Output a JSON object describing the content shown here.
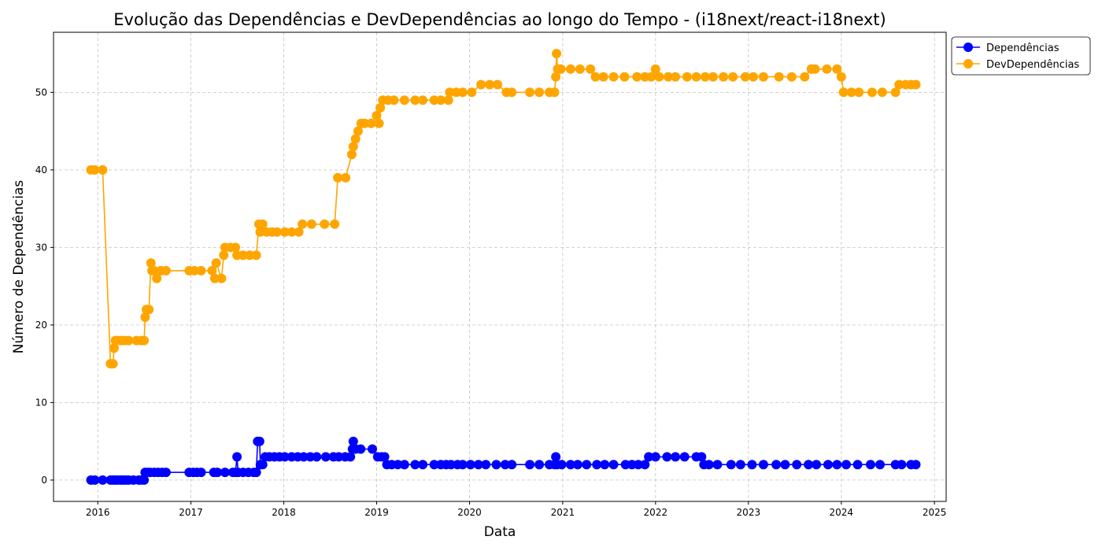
{
  "chart_data": {
    "type": "line",
    "title": "Evolução das Dependências e DevDependências ao longo do Tempo - (i18next/react-i18next)",
    "xlabel": "Data",
    "ylabel": "Número de Dependências",
    "x_ticks": [
      "2016",
      "2017",
      "2018",
      "2019",
      "2020",
      "2021",
      "2022",
      "2023",
      "2024",
      "2025"
    ],
    "y_ticks": [
      0,
      10,
      20,
      30,
      40,
      50
    ],
    "xlim": [
      "2015-07-11",
      "2025-02-16"
    ],
    "ylim": [
      -2.75,
      57.75
    ],
    "grid": true,
    "legend_position": "outside-top-right",
    "marker": "circle",
    "series": [
      {
        "name": "Dependências",
        "color": "#0000ff",
        "points": [
          [
            "2015-12-05",
            0
          ],
          [
            "2015-12-20",
            0
          ],
          [
            "2016-01-20",
            0
          ],
          [
            "2016-02-20",
            0
          ],
          [
            "2016-03-01",
            0
          ],
          [
            "2016-03-10",
            0
          ],
          [
            "2016-03-20",
            0
          ],
          [
            "2016-04-01",
            0
          ],
          [
            "2016-04-10",
            0
          ],
          [
            "2016-04-20",
            0
          ],
          [
            "2016-05-01",
            0
          ],
          [
            "2016-05-20",
            0
          ],
          [
            "2016-06-10",
            0
          ],
          [
            "2016-06-20",
            0
          ],
          [
            "2016-07-01",
            0
          ],
          [
            "2016-07-05",
            1
          ],
          [
            "2016-07-15",
            1
          ],
          [
            "2016-07-25",
            1
          ],
          [
            "2016-08-10",
            1
          ],
          [
            "2016-08-25",
            1
          ],
          [
            "2016-09-10",
            1
          ],
          [
            "2016-09-25",
            1
          ],
          [
            "2016-12-25",
            1
          ],
          [
            "2017-01-10",
            1
          ],
          [
            "2017-01-25",
            1
          ],
          [
            "2017-02-10",
            1
          ],
          [
            "2017-04-01",
            1
          ],
          [
            "2017-04-15",
            1
          ],
          [
            "2017-05-15",
            1
          ],
          [
            "2017-06-15",
            1
          ],
          [
            "2017-06-25",
            1
          ],
          [
            "2017-07-01",
            3
          ],
          [
            "2017-07-05",
            1
          ],
          [
            "2017-07-25",
            1
          ],
          [
            "2017-08-15",
            1
          ],
          [
            "2017-09-05",
            1
          ],
          [
            "2017-09-15",
            1
          ],
          [
            "2017-09-20",
            5
          ],
          [
            "2017-09-28",
            5
          ],
          [
            "2017-10-01",
            2
          ],
          [
            "2017-10-10",
            2
          ],
          [
            "2017-10-20",
            3
          ],
          [
            "2017-11-05",
            3
          ],
          [
            "2017-11-25",
            3
          ],
          [
            "2017-12-15",
            3
          ],
          [
            "2018-01-05",
            3
          ],
          [
            "2018-02-01",
            3
          ],
          [
            "2018-02-25",
            3
          ],
          [
            "2018-03-20",
            3
          ],
          [
            "2018-04-15",
            3
          ],
          [
            "2018-05-10",
            3
          ],
          [
            "2018-06-15",
            3
          ],
          [
            "2018-07-15",
            3
          ],
          [
            "2018-08-05",
            3
          ],
          [
            "2018-08-30",
            3
          ],
          [
            "2018-09-20",
            3
          ],
          [
            "2018-09-28",
            4
          ],
          [
            "2018-10-01",
            5
          ],
          [
            "2018-10-10",
            4
          ],
          [
            "2018-10-30",
            4
          ],
          [
            "2018-12-15",
            4
          ],
          [
            "2019-01-05",
            3
          ],
          [
            "2019-01-20",
            3
          ],
          [
            "2019-02-01",
            3
          ],
          [
            "2019-02-10",
            2
          ],
          [
            "2019-03-01",
            2
          ],
          [
            "2019-03-25",
            2
          ],
          [
            "2019-04-20",
            2
          ],
          [
            "2019-06-01",
            2
          ],
          [
            "2019-07-01",
            2
          ],
          [
            "2019-08-15",
            2
          ],
          [
            "2019-09-10",
            2
          ],
          [
            "2019-10-01",
            2
          ],
          [
            "2019-10-20",
            2
          ],
          [
            "2019-11-15",
            2
          ],
          [
            "2019-12-05",
            2
          ],
          [
            "2020-01-05",
            2
          ],
          [
            "2020-02-05",
            2
          ],
          [
            "2020-03-05",
            2
          ],
          [
            "2020-04-15",
            2
          ],
          [
            "2020-05-20",
            2
          ],
          [
            "2020-06-15",
            2
          ],
          [
            "2020-08-25",
            2
          ],
          [
            "2020-10-01",
            2
          ],
          [
            "2020-11-10",
            2
          ],
          [
            "2020-11-30",
            2
          ],
          [
            "2020-12-05",
            3
          ],
          [
            "2020-12-10",
            2
          ],
          [
            "2020-12-28",
            2
          ],
          [
            "2021-02-01",
            2
          ],
          [
            "2021-03-01",
            2
          ],
          [
            "2021-04-05",
            2
          ],
          [
            "2021-05-15",
            2
          ],
          [
            "2021-06-15",
            2
          ],
          [
            "2021-07-20",
            2
          ],
          [
            "2021-09-05",
            2
          ],
          [
            "2021-09-30",
            2
          ],
          [
            "2021-10-25",
            2
          ],
          [
            "2021-11-20",
            2
          ],
          [
            "2021-12-05",
            3
          ],
          [
            "2022-01-01",
            3
          ],
          [
            "2022-02-15",
            3
          ],
          [
            "2022-03-20",
            3
          ],
          [
            "2022-04-25",
            3
          ],
          [
            "2022-06-10",
            3
          ],
          [
            "2022-07-01",
            3
          ],
          [
            "2022-07-10",
            2
          ],
          [
            "2022-07-30",
            2
          ],
          [
            "2022-09-01",
            2
          ],
          [
            "2022-10-25",
            2
          ],
          [
            "2022-12-01",
            2
          ],
          [
            "2023-01-15",
            2
          ],
          [
            "2023-03-01",
            2
          ],
          [
            "2023-04-20",
            2
          ],
          [
            "2023-05-25",
            2
          ],
          [
            "2023-07-10",
            2
          ],
          [
            "2023-08-25",
            2
          ],
          [
            "2023-09-25",
            2
          ],
          [
            "2023-11-10",
            2
          ],
          [
            "2023-12-15",
            2
          ],
          [
            "2024-01-20",
            2
          ],
          [
            "2024-03-05",
            2
          ],
          [
            "2024-04-25",
            2
          ],
          [
            "2024-06-01",
            2
          ],
          [
            "2024-08-01",
            2
          ],
          [
            "2024-08-25",
            2
          ],
          [
            "2024-10-01",
            2
          ],
          [
            "2024-10-20",
            2
          ]
        ]
      },
      {
        "name": "DevDependências",
        "color": "#ffa500",
        "points": [
          [
            "2015-12-05",
            40
          ],
          [
            "2015-12-20",
            40
          ],
          [
            "2016-01-20",
            40
          ],
          [
            "2016-02-20",
            15
          ],
          [
            "2016-03-01",
            15
          ],
          [
            "2016-03-05",
            17
          ],
          [
            "2016-03-10",
            18
          ],
          [
            "2016-03-20",
            18
          ],
          [
            "2016-04-01",
            18
          ],
          [
            "2016-04-15",
            18
          ],
          [
            "2016-05-01",
            18
          ],
          [
            "2016-06-01",
            18
          ],
          [
            "2016-06-20",
            18
          ],
          [
            "2016-07-01",
            18
          ],
          [
            "2016-07-05",
            21
          ],
          [
            "2016-07-10",
            22
          ],
          [
            "2016-07-20",
            22
          ],
          [
            "2016-07-28",
            28
          ],
          [
            "2016-08-01",
            27
          ],
          [
            "2016-08-10",
            27
          ],
          [
            "2016-08-20",
            26
          ],
          [
            "2016-09-05",
            27
          ],
          [
            "2016-09-25",
            27
          ],
          [
            "2016-12-25",
            27
          ],
          [
            "2017-01-15",
            27
          ],
          [
            "2017-02-10",
            27
          ],
          [
            "2017-03-25",
            27
          ],
          [
            "2017-04-05",
            26
          ],
          [
            "2017-04-10",
            28
          ],
          [
            "2017-05-01",
            26
          ],
          [
            "2017-05-10",
            29
          ],
          [
            "2017-05-15",
            30
          ],
          [
            "2017-06-05",
            30
          ],
          [
            "2017-06-25",
            30
          ],
          [
            "2017-07-01",
            29
          ],
          [
            "2017-07-25",
            29
          ],
          [
            "2017-08-20",
            29
          ],
          [
            "2017-09-15",
            29
          ],
          [
            "2017-09-25",
            33
          ],
          [
            "2017-09-30",
            32
          ],
          [
            "2017-10-10",
            33
          ],
          [
            "2017-10-25",
            32
          ],
          [
            "2017-11-15",
            32
          ],
          [
            "2017-12-05",
            32
          ],
          [
            "2018-01-05",
            32
          ],
          [
            "2018-02-01",
            32
          ],
          [
            "2018-03-01",
            32
          ],
          [
            "2018-03-15",
            33
          ],
          [
            "2018-04-20",
            33
          ],
          [
            "2018-06-10",
            33
          ],
          [
            "2018-07-20",
            33
          ],
          [
            "2018-08-01",
            39
          ],
          [
            "2018-09-01",
            39
          ],
          [
            "2018-09-25",
            42
          ],
          [
            "2018-10-01",
            43
          ],
          [
            "2018-10-10",
            44
          ],
          [
            "2018-10-20",
            45
          ],
          [
            "2018-11-01",
            46
          ],
          [
            "2018-11-15",
            46
          ],
          [
            "2018-12-10",
            46
          ],
          [
            "2019-01-01",
            47
          ],
          [
            "2019-01-10",
            46
          ],
          [
            "2019-01-15",
            48
          ],
          [
            "2019-01-25",
            49
          ],
          [
            "2019-02-15",
            49
          ],
          [
            "2019-03-10",
            49
          ],
          [
            "2019-04-20",
            49
          ],
          [
            "2019-06-01",
            49
          ],
          [
            "2019-07-01",
            49
          ],
          [
            "2019-08-15",
            49
          ],
          [
            "2019-09-10",
            49
          ],
          [
            "2019-10-10",
            49
          ],
          [
            "2019-10-15",
            50
          ],
          [
            "2019-11-10",
            50
          ],
          [
            "2019-12-05",
            50
          ],
          [
            "2020-01-10",
            50
          ],
          [
            "2020-02-15",
            51
          ],
          [
            "2020-03-20",
            51
          ],
          [
            "2020-04-20",
            51
          ],
          [
            "2020-05-25",
            50
          ],
          [
            "2020-06-15",
            50
          ],
          [
            "2020-08-25",
            50
          ],
          [
            "2020-10-01",
            50
          ],
          [
            "2020-11-10",
            50
          ],
          [
            "2020-11-30",
            50
          ],
          [
            "2020-12-05",
            52
          ],
          [
            "2020-12-08",
            55
          ],
          [
            "2020-12-12",
            53
          ],
          [
            "2020-12-25",
            53
          ],
          [
            "2021-02-01",
            53
          ],
          [
            "2021-03-10",
            53
          ],
          [
            "2021-04-20",
            53
          ],
          [
            "2021-05-10",
            52
          ],
          [
            "2021-06-10",
            52
          ],
          [
            "2021-07-20",
            52
          ],
          [
            "2021-09-01",
            52
          ],
          [
            "2021-10-20",
            52
          ],
          [
            "2021-11-20",
            52
          ],
          [
            "2021-12-15",
            52
          ],
          [
            "2022-01-01",
            53
          ],
          [
            "2022-01-15",
            52
          ],
          [
            "2022-02-20",
            52
          ],
          [
            "2022-03-20",
            52
          ],
          [
            "2022-05-05",
            52
          ],
          [
            "2022-06-10",
            52
          ],
          [
            "2022-07-15",
            52
          ],
          [
            "2022-08-15",
            52
          ],
          [
            "2022-09-25",
            52
          ],
          [
            "2022-11-01",
            52
          ],
          [
            "2022-12-20",
            52
          ],
          [
            "2023-01-20",
            52
          ],
          [
            "2023-03-01",
            52
          ],
          [
            "2023-05-01",
            52
          ],
          [
            "2023-06-20",
            52
          ],
          [
            "2023-08-10",
            52
          ],
          [
            "2023-09-05",
            53
          ],
          [
            "2023-09-20",
            53
          ],
          [
            "2023-11-05",
            53
          ],
          [
            "2023-12-15",
            53
          ],
          [
            "2024-01-01",
            52
          ],
          [
            "2024-01-10",
            50
          ],
          [
            "2024-02-10",
            50
          ],
          [
            "2024-03-10",
            50
          ],
          [
            "2024-05-01",
            50
          ],
          [
            "2024-06-10",
            50
          ],
          [
            "2024-08-01",
            50
          ],
          [
            "2024-08-15",
            51
          ],
          [
            "2024-09-10",
            51
          ],
          [
            "2024-10-01",
            51
          ],
          [
            "2024-10-20",
            51
          ]
        ]
      }
    ]
  }
}
